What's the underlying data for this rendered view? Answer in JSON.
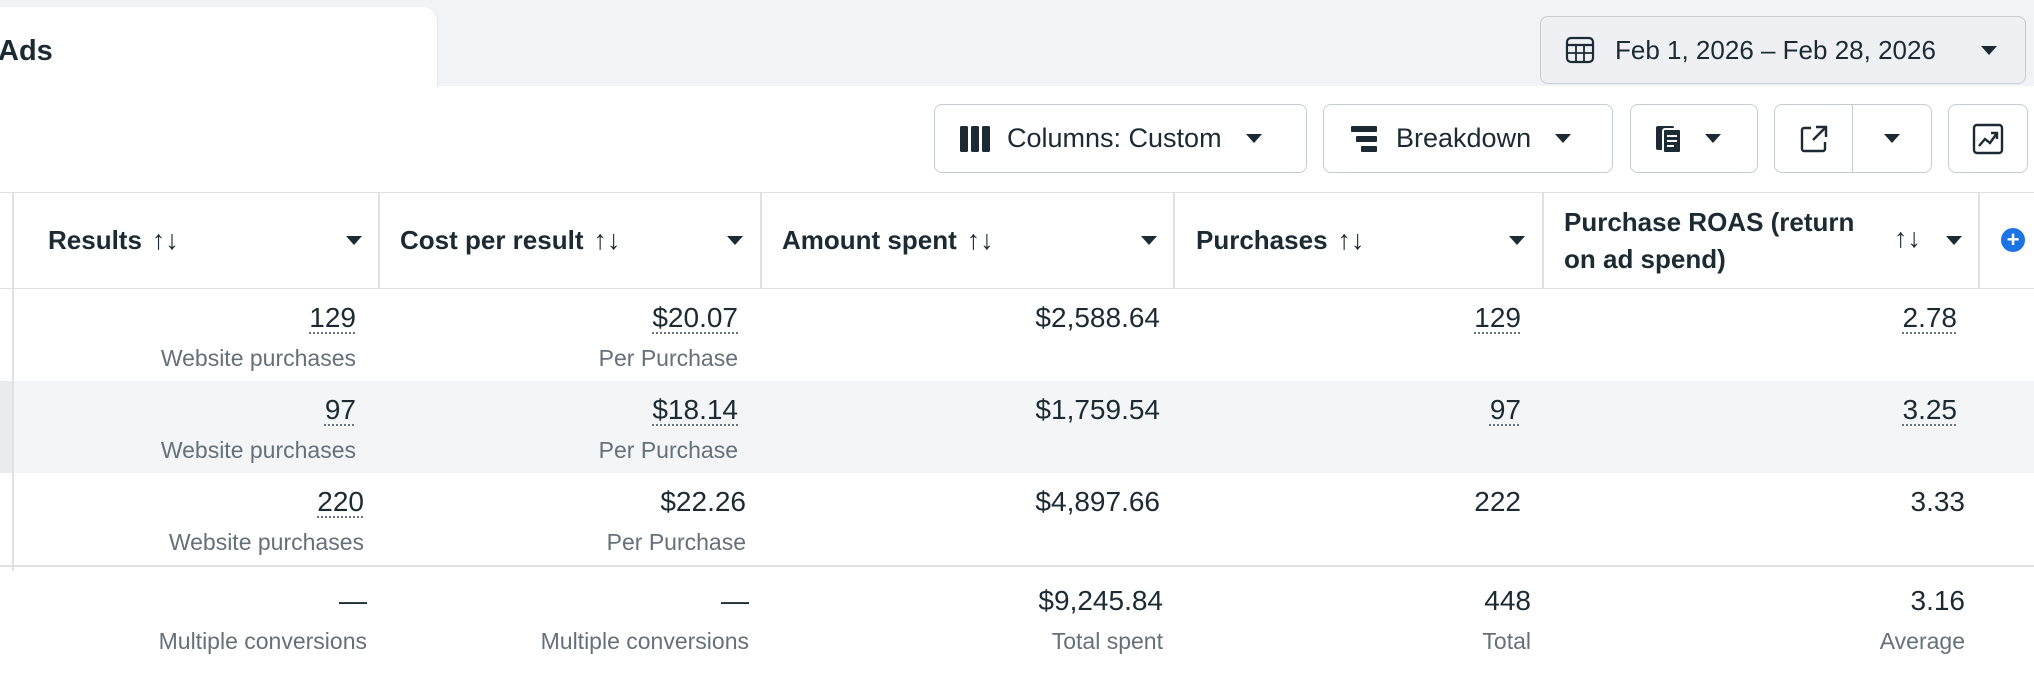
{
  "tab": {
    "label": "Ads"
  },
  "date_range": {
    "label": "Feb 1, 2026 – Feb 28, 2026"
  },
  "toolbar": {
    "columns_label": "Columns: Custom",
    "breakdown_label": "Breakdown"
  },
  "columns": [
    {
      "label": "Results",
      "sort_icon": "↑↓"
    },
    {
      "label": "Cost per result",
      "sort_icon": "↑↓"
    },
    {
      "label": "Amount spent",
      "sort_icon": "↑↓"
    },
    {
      "label": "Purchases",
      "sort_icon": "↑↓"
    },
    {
      "label_line1": "Purchase ROAS (return",
      "label_line2": "on ad spend)",
      "sort_icon": "↑↓"
    }
  ],
  "rows": [
    {
      "results": "129",
      "results_sub": "Website purchases",
      "cost": "$20.07",
      "cost_sub": "Per Purchase",
      "spent": "$2,588.64",
      "purchases": "129",
      "roas": "2.78"
    },
    {
      "results": "97",
      "results_sub": "Website purchases",
      "cost": "$18.14",
      "cost_sub": "Per Purchase",
      "spent": "$1,759.54",
      "purchases": "97",
      "roas": "3.25"
    },
    {
      "results": "220",
      "results_sub": "Website purchases",
      "cost": "$22.26",
      "cost_sub": "Per Purchase",
      "spent": "$4,897.66",
      "purchases": "222",
      "roas": "3.33"
    }
  ],
  "totals": {
    "results": "—",
    "results_sub": "Multiple conversions",
    "cost": "—",
    "cost_sub": "Multiple conversions",
    "spent": "$9,245.84",
    "spent_sub": "Total spent",
    "purchases": "448",
    "purchases_sub": "Total",
    "roas": "3.16",
    "roas_sub": "Average"
  },
  "add_column_icon": "+"
}
